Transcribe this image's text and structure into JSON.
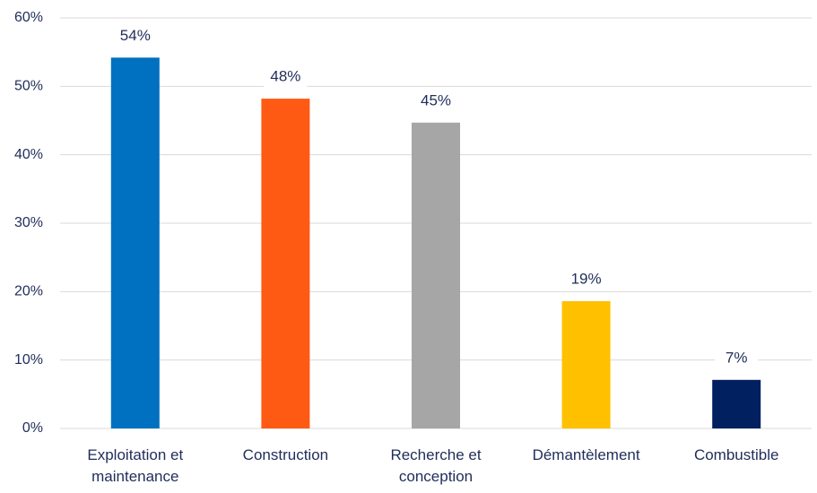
{
  "chart_data": {
    "type": "bar",
    "categories": [
      "Exploitation et maintenance",
      "Construction",
      "Recherche et conception",
      "Démantèlement",
      "Combustible"
    ],
    "values": [
      54.2,
      48.2,
      44.7,
      18.6,
      7.1
    ],
    "value_labels": [
      "54%",
      "48%",
      "45%",
      "19%",
      "7%"
    ],
    "colors": [
      "#0070c0",
      "#ff5a14",
      "#a6a6a6",
      "#ffc000",
      "#002060"
    ],
    "ylim": [
      0,
      60
    ],
    "yticks": [
      {
        "value": 0,
        "label": "0%"
      },
      {
        "value": 10,
        "label": "10%"
      },
      {
        "value": 20,
        "label": "20%"
      },
      {
        "value": 30,
        "label": "30%"
      },
      {
        "value": 40,
        "label": "40%"
      },
      {
        "value": 50,
        "label": "50%"
      },
      {
        "value": 60,
        "label": "60%"
      }
    ],
    "grid": true
  }
}
